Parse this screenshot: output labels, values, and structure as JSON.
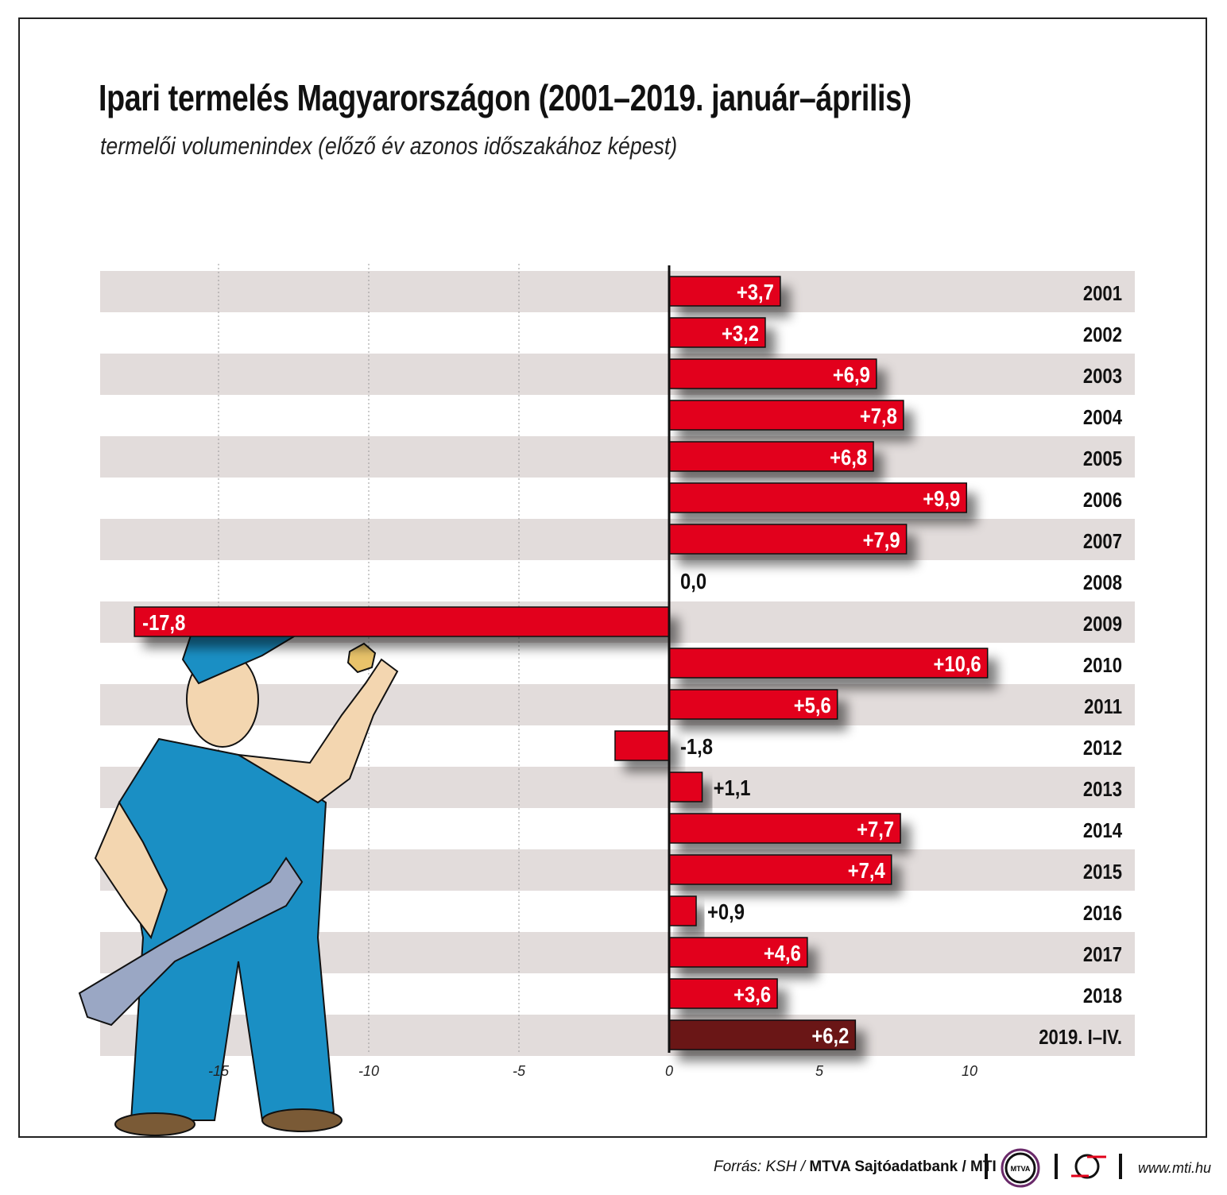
{
  "header": {
    "title": "Ipari termelés Magyarországon (2001–2019. január–április)",
    "subtitle": "termelői volumenindex (előző év azonos időszakához képest)"
  },
  "chart_data": {
    "type": "bar",
    "orientation": "horizontal",
    "title": "Ipari termelés Magyarországon (2001–2019. január–április)",
    "subtitle": "termelői volumenindex (előző év azonos időszakához képest)",
    "categories": [
      "2001",
      "2002",
      "2003",
      "2004",
      "2005",
      "2006",
      "2007",
      "2008",
      "2009",
      "2010",
      "2011",
      "2012",
      "2013",
      "2014",
      "2015",
      "2016",
      "2017",
      "2018",
      "2019. I–IV."
    ],
    "values": [
      3.7,
      3.2,
      6.9,
      7.8,
      6.8,
      9.9,
      7.9,
      0.0,
      -17.8,
      10.6,
      5.6,
      -1.8,
      1.1,
      7.7,
      7.4,
      0.9,
      4.6,
      3.6,
      6.2
    ],
    "labels": [
      "+3,7",
      "+3,2",
      "+6,9",
      "+7,8",
      "+6,8",
      "+9,9",
      "+7,9",
      "0,0",
      "-17,8",
      "+10,6",
      "+5,6",
      "-1,8",
      "+1,1",
      "+7,7",
      "+7,4",
      "+0,9",
      "+4,6",
      "+3,6",
      "+6,2"
    ],
    "xticks": [
      -15,
      -10,
      -5,
      0,
      5,
      10
    ],
    "xtick_labels": [
      "-15",
      "-10",
      "-5",
      "0",
      "5",
      "10"
    ],
    "xlim": [
      -18.9,
      15.4
    ],
    "grid": "vertical dashed at -15,-10,-5",
    "colors": {
      "bar": "#e2001a",
      "highlight": "#6b1214",
      "stripe": "#e2dcdb"
    }
  },
  "footer": {
    "source_prefix": "Forrás: KSH / ",
    "source_bold": "MTVA Sajtóadatbank / MTI",
    "mtva_logo": "MTVA",
    "url": "www.mti.hu"
  }
}
